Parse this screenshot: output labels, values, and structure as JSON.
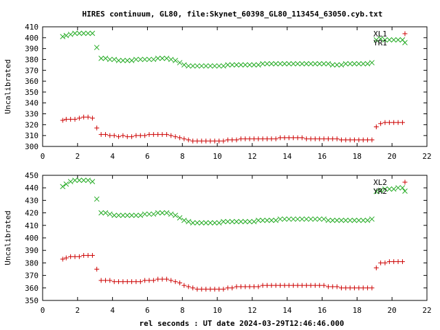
{
  "title": "HIRES continuum, GL80, file:Skynet_60398_GL80_113454_63050.cyb.txt",
  "colors": {
    "red": "#cc0000",
    "green": "#22aa22",
    "axis": "#000000"
  },
  "chart_data": [
    {
      "type": "scatter",
      "ylabel": "Uncalibrated",
      "xlim": [
        0,
        22
      ],
      "ylim": [
        300,
        410
      ],
      "x_ticks": [
        "0",
        "2",
        "4",
        "6",
        "8",
        "10",
        "12",
        "14",
        "16",
        "18",
        "20",
        "22"
      ],
      "y_ticks": [
        "300",
        "310",
        "320",
        "330",
        "340",
        "350",
        "360",
        "370",
        "380",
        "390",
        "400",
        "410"
      ],
      "legend": "top-right",
      "x": [
        1.15,
        1.35,
        1.6,
        1.85,
        2.1,
        2.35,
        2.6,
        2.85,
        3.1,
        3.35,
        3.6,
        3.85,
        4.1,
        4.35,
        4.6,
        4.85,
        5.1,
        5.35,
        5.6,
        5.85,
        6.1,
        6.35,
        6.6,
        6.85,
        7.1,
        7.35,
        7.6,
        7.85,
        8.1,
        8.35,
        8.6,
        8.85,
        9.1,
        9.35,
        9.6,
        9.85,
        10.1,
        10.35,
        10.6,
        10.85,
        11.1,
        11.35,
        11.6,
        11.85,
        12.1,
        12.35,
        12.6,
        12.85,
        13.1,
        13.35,
        13.6,
        13.85,
        14.1,
        14.35,
        14.6,
        14.85,
        15.1,
        15.35,
        15.6,
        15.85,
        16.1,
        16.35,
        16.6,
        16.85,
        17.1,
        17.35,
        17.6,
        17.85,
        18.1,
        18.35,
        18.6,
        18.85,
        19.1,
        19.35,
        19.6,
        19.85,
        20.1,
        20.35,
        20.6
      ],
      "series": [
        {
          "name": "XL1",
          "marker": "plus",
          "color": "#cc0000",
          "values": [
            324,
            325,
            325,
            325,
            326,
            327,
            327,
            326,
            317,
            311,
            311,
            310,
            310,
            309,
            310,
            309,
            309,
            310,
            310,
            310,
            311,
            311,
            311,
            311,
            311,
            310,
            309,
            308,
            307,
            306,
            305,
            305,
            305,
            305,
            305,
            305,
            305,
            305,
            306,
            306,
            306,
            307,
            307,
            307,
            307,
            307,
            307,
            307,
            307,
            307,
            308,
            308,
            308,
            308,
            308,
            308,
            307,
            307,
            307,
            307,
            307,
            307,
            307,
            307,
            306,
            306,
            306,
            306,
            306,
            306,
            306,
            306,
            318,
            321,
            322,
            322,
            322,
            322,
            322
          ]
        },
        {
          "name": "YR1",
          "marker": "cross",
          "color": "#22aa22",
          "values": [
            401,
            402,
            403,
            404,
            404,
            404,
            404,
            404,
            391,
            381,
            381,
            380,
            380,
            379,
            379,
            379,
            379,
            380,
            380,
            380,
            380,
            380,
            381,
            381,
            381,
            380,
            379,
            377,
            375,
            374,
            374,
            374,
            374,
            374,
            374,
            374,
            374,
            374,
            375,
            375,
            375,
            375,
            375,
            375,
            375,
            375,
            376,
            376,
            376,
            376,
            376,
            376,
            376,
            376,
            376,
            376,
            376,
            376,
            376,
            376,
            376,
            376,
            375,
            375,
            375,
            376,
            376,
            376,
            376,
            376,
            376,
            377,
            398,
            399,
            398,
            398,
            398,
            398,
            398
          ]
        }
      ]
    },
    {
      "type": "scatter",
      "ylabel": "Uncalibrated",
      "xlabel": "rel seconds : UT date 2024-03-29T12:46:46.000",
      "xlim": [
        0,
        22
      ],
      "ylim": [
        350,
        450
      ],
      "x_ticks": [
        "0",
        "2",
        "4",
        "6",
        "8",
        "10",
        "12",
        "14",
        "16",
        "18",
        "20",
        "22"
      ],
      "y_ticks": [
        "350",
        "360",
        "370",
        "380",
        "390",
        "400",
        "410",
        "420",
        "430",
        "440",
        "450"
      ],
      "legend": "top-right",
      "x": [
        1.15,
        1.35,
        1.6,
        1.85,
        2.1,
        2.35,
        2.6,
        2.85,
        3.1,
        3.35,
        3.6,
        3.85,
        4.1,
        4.35,
        4.6,
        4.85,
        5.1,
        5.35,
        5.6,
        5.85,
        6.1,
        6.35,
        6.6,
        6.85,
        7.1,
        7.35,
        7.6,
        7.85,
        8.1,
        8.35,
        8.6,
        8.85,
        9.1,
        9.35,
        9.6,
        9.85,
        10.1,
        10.35,
        10.6,
        10.85,
        11.1,
        11.35,
        11.6,
        11.85,
        12.1,
        12.35,
        12.6,
        12.85,
        13.1,
        13.35,
        13.6,
        13.85,
        14.1,
        14.35,
        14.6,
        14.85,
        15.1,
        15.35,
        15.6,
        15.85,
        16.1,
        16.35,
        16.6,
        16.85,
        17.1,
        17.35,
        17.6,
        17.85,
        18.1,
        18.35,
        18.6,
        18.85,
        19.1,
        19.35,
        19.6,
        19.85,
        20.1,
        20.35,
        20.6
      ],
      "series": [
        {
          "name": "XL2",
          "marker": "plus",
          "color": "#cc0000",
          "values": [
            383,
            384,
            385,
            385,
            385,
            386,
            386,
            386,
            375,
            366,
            366,
            366,
            365,
            365,
            365,
            365,
            365,
            365,
            365,
            366,
            366,
            366,
            367,
            367,
            367,
            366,
            365,
            364,
            362,
            361,
            360,
            359,
            359,
            359,
            359,
            359,
            359,
            359,
            360,
            360,
            361,
            361,
            361,
            361,
            361,
            361,
            362,
            362,
            362,
            362,
            362,
            362,
            362,
            362,
            362,
            362,
            362,
            362,
            362,
            362,
            362,
            361,
            361,
            361,
            360,
            360,
            360,
            360,
            360,
            360,
            360,
            360,
            376,
            380,
            380,
            381,
            381,
            381,
            381
          ]
        },
        {
          "name": "YR2",
          "marker": "cross",
          "color": "#22aa22",
          "values": [
            441,
            443,
            445,
            446,
            446,
            446,
            446,
            445,
            431,
            420,
            420,
            419,
            418,
            418,
            418,
            418,
            418,
            418,
            418,
            419,
            419,
            419,
            420,
            420,
            420,
            419,
            418,
            416,
            414,
            413,
            412,
            412,
            412,
            412,
            412,
            412,
            412,
            413,
            413,
            413,
            413,
            413,
            413,
            413,
            413,
            414,
            414,
            414,
            414,
            414,
            415,
            415,
            415,
            415,
            415,
            415,
            415,
            415,
            415,
            415,
            415,
            414,
            414,
            414,
            414,
            414,
            414,
            414,
            414,
            414,
            414,
            415,
            437,
            438,
            439,
            439,
            439,
            440,
            440
          ]
        }
      ]
    }
  ]
}
